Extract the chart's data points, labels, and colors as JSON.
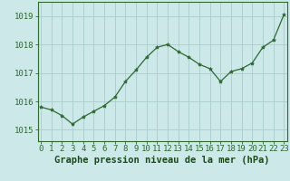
{
  "x": [
    0,
    1,
    2,
    3,
    4,
    5,
    6,
    7,
    8,
    9,
    10,
    11,
    12,
    13,
    14,
    15,
    16,
    17,
    18,
    19,
    20,
    21,
    22,
    23
  ],
  "y": [
    1015.8,
    1015.7,
    1015.5,
    1015.2,
    1015.45,
    1015.65,
    1015.85,
    1016.15,
    1016.7,
    1017.1,
    1017.55,
    1017.9,
    1018.0,
    1017.75,
    1017.55,
    1017.3,
    1017.15,
    1016.7,
    1017.05,
    1017.15,
    1017.35,
    1017.9,
    1018.15,
    1019.05
  ],
  "line_color": "#2d6a2d",
  "marker": "*",
  "marker_size": 3,
  "bg_color": "#cce8e8",
  "grid_color": "#aacccc",
  "xlabel": "Graphe pression niveau de la mer (hPa)",
  "xlabel_fontsize": 7.5,
  "xlabel_color": "#1a4a1a",
  "xlabel_fontweight": "bold",
  "ytick_labels": [
    "1015",
    "1016",
    "1017",
    "1018",
    "1019"
  ],
  "ytick_values": [
    1015,
    1016,
    1017,
    1018,
    1019
  ],
  "ylim": [
    1014.6,
    1019.5
  ],
  "xlim": [
    -0.3,
    23.3
  ],
  "axis_label_color": "#2d6a2d",
  "tick_fontsize": 6.5,
  "spine_color": "#2d6a2d",
  "linewidth": 0.9
}
